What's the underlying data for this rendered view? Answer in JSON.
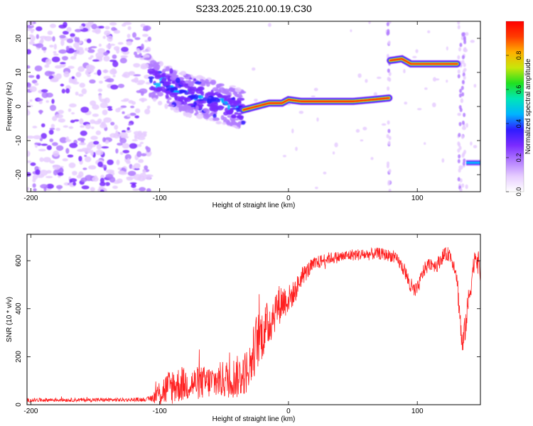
{
  "title": "S233.2025.210.00.19.C30",
  "colors": {
    "snr_line": "#ff2020",
    "axis": "#000000",
    "colormap": [
      "#ffffff",
      "#e6ccff",
      "#b27cff",
      "#7a2bff",
      "#2f1cff",
      "#00b4ff",
      "#00e6b8",
      "#20e020",
      "#c8e60a",
      "#ffb000",
      "#ff3c00",
      "#ff0000"
    ]
  },
  "chart_data": [
    {
      "type": "heatmap",
      "title": "S233.2025.210.00.19.C30",
      "xlabel": "Height of straight line (km)",
      "ylabel": "Frequency (Hz)",
      "xlim": [
        -203,
        149
      ],
      "ylim": [
        -25,
        25
      ],
      "xticks": [
        -200,
        -100,
        0,
        100
      ],
      "yticks": [
        -20,
        -10,
        0,
        10,
        20
      ],
      "colorbar": {
        "label": "Normalized spectral amplitude",
        "range": [
          0,
          1
        ],
        "ticks": [
          "0.0",
          "0.2",
          "0.4",
          "0.6",
          "0.8"
        ],
        "tick_values": [
          0,
          0.2,
          0.4,
          0.6,
          0.8
        ]
      },
      "regions": [
        {
          "x": [
            -203,
            -107
          ],
          "y": [
            -25,
            25
          ],
          "pattern": "scattered noise",
          "amplitude": 0.15
        },
        {
          "x": [
            -107,
            -35
          ],
          "y": [
            -5,
            12
          ],
          "pattern": "scattered signal",
          "amplitude": 0.3
        },
        {
          "x": [
            -35,
            78
          ],
          "y": [
            -2,
            4
          ],
          "pattern": "tone",
          "amplitude": 0.9
        },
        {
          "x": [
            78,
            131
          ],
          "y": [
            11,
            15
          ],
          "pattern": "tone",
          "amplitude": 0.9
        },
        {
          "x": [
            138,
            149
          ],
          "y": [
            -18,
            -15
          ],
          "pattern": "tone",
          "amplitude": 0.35
        }
      ],
      "ridge": {
        "x": [
          -105,
          -90,
          -75,
          -60,
          -45,
          -35,
          -25,
          -15,
          -5,
          0,
          10,
          25,
          50,
          65,
          78
        ],
        "y": [
          8,
          5,
          3,
          2,
          0,
          -1,
          0,
          1,
          1,
          2,
          1.5,
          1.5,
          1.5,
          2,
          2.5
        ]
      },
      "ridge2": {
        "x": [
          79,
          88,
          95,
          100,
          110,
          131
        ],
        "y": [
          13.5,
          14,
          12.5,
          12.5,
          12.5,
          12.5
        ]
      }
    },
    {
      "type": "line",
      "xlabel": "Height of straight line (km)",
      "ylabel": "SNR (10 * v/v)",
      "xlim": [
        -203,
        149
      ],
      "ylim": [
        0,
        710
      ],
      "xticks": [
        -200,
        -100,
        0,
        100
      ],
      "yticks": [
        0,
        200,
        400,
        600
      ],
      "series": [
        {
          "color": "#ff2020",
          "x": [
            -203,
            -190,
            -170,
            -150,
            -130,
            -110,
            -105,
            -100,
            -90,
            -80,
            -70,
            -60,
            -50,
            -40,
            -35,
            -30,
            -25,
            -20,
            -15,
            -10,
            -5,
            0,
            5,
            10,
            15,
            20,
            30,
            40,
            50,
            60,
            70,
            80,
            85,
            90,
            95,
            98,
            100,
            105,
            110,
            115,
            120,
            125,
            130,
            132,
            135,
            140,
            145,
            149
          ],
          "y": [
            18,
            20,
            20,
            20,
            20,
            22,
            30,
            50,
            80,
            85,
            90,
            95,
            105,
            115,
            125,
            160,
            260,
            300,
            340,
            400,
            430,
            440,
            470,
            530,
            560,
            585,
            610,
            615,
            625,
            625,
            630,
            620,
            600,
            560,
            490,
            470,
            480,
            560,
            590,
            580,
            620,
            630,
            560,
            450,
            230,
            440,
            630,
            560
          ],
          "envelope_amplitude": [
            8,
            8,
            8,
            8,
            8,
            8,
            20,
            60,
            80,
            70,
            70,
            70,
            80,
            90,
            90,
            100,
            120,
            110,
            100,
            90,
            80,
            60,
            50,
            40,
            35,
            30,
            25,
            25,
            25,
            25,
            25,
            25,
            25,
            30,
            40,
            40,
            30,
            30,
            30,
            30,
            30,
            30,
            30,
            60,
            60,
            60,
            40,
            60
          ]
        }
      ]
    }
  ]
}
